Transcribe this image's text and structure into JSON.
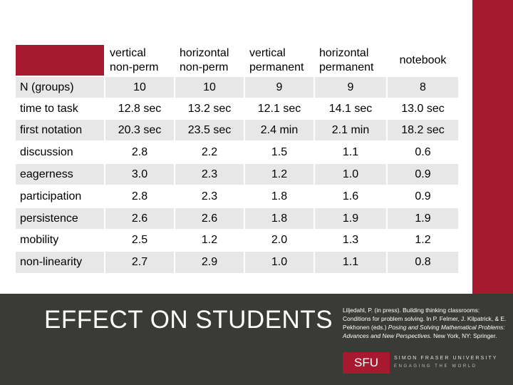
{
  "table": {
    "columns": [
      "vertical\nnon-perm",
      "horizontal\nnon-perm",
      "vertical\npermanent",
      "horizontal\npermanent",
      "notebook"
    ],
    "rows": [
      {
        "label": "N (groups)",
        "values": [
          "10",
          "10",
          "9",
          "9",
          "8"
        ]
      },
      {
        "label": "time to task",
        "values": [
          "12.8 sec",
          "13.2 sec",
          "12.1 sec",
          "14.1 sec",
          "13.0 sec"
        ]
      },
      {
        "label": "first notation",
        "values": [
          "20.3 sec",
          "23.5 sec",
          "2.4 min",
          "2.1 min",
          "18.2 sec"
        ]
      },
      {
        "label": "discussion",
        "values": [
          "2.8",
          "2.2",
          "1.5",
          "1.1",
          "0.6"
        ]
      },
      {
        "label": "eagerness",
        "values": [
          "3.0",
          "2.3",
          "1.2",
          "1.0",
          "0.9"
        ]
      },
      {
        "label": "participation",
        "values": [
          "2.8",
          "2.3",
          "1.8",
          "1.6",
          "0.9"
        ]
      },
      {
        "label": "persistence",
        "values": [
          "2.6",
          "2.6",
          "1.8",
          "1.9",
          "1.9"
        ]
      },
      {
        "label": "mobility",
        "values": [
          "2.5",
          "1.2",
          "2.0",
          "1.3",
          "1.2"
        ]
      },
      {
        "label": "non-linearity",
        "values": [
          "2.7",
          "2.9",
          "1.0",
          "1.1",
          "0.8"
        ]
      }
    ]
  },
  "footer": {
    "title": "EFFECT ON STUDENTS",
    "citation_plain": "Liljedahl, P. (in press). Building thinking classrooms: Conditions for problem solving. In P. Felmer, J. Kilpatrick, & E. Pekhonen (eds.) ",
    "citation_italic": "Posing and Solving Mathematical Problems: Advances and New Perspectives.",
    "citation_end": " New York, NY: Springer."
  },
  "logo": {
    "letters": "SFU",
    "name": "SIMON FRASER UNIVERSITY",
    "tagline": "ENGAGING THE WORLD"
  },
  "colors": {
    "accent": "#a6192e",
    "footer_bg": "#3a3a36",
    "row_shade": "#e7e7e7"
  }
}
